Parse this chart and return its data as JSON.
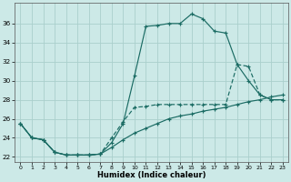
{
  "xlabel": "Humidex (Indice chaleur)",
  "xlim_min": -0.5,
  "xlim_max": 23.5,
  "ylim_min": 21.5,
  "ylim_max": 38.2,
  "yticks": [
    22,
    24,
    26,
    28,
    30,
    32,
    34,
    36
  ],
  "xticks": [
    0,
    1,
    2,
    3,
    4,
    5,
    6,
    7,
    8,
    9,
    10,
    11,
    12,
    13,
    14,
    15,
    16,
    17,
    18,
    19,
    20,
    21,
    22,
    23
  ],
  "bg_color": "#cce9e7",
  "grid_color": "#aacfcc",
  "line_color": "#1a6b63",
  "line1_x": [
    0,
    1,
    2,
    3,
    4,
    5,
    6,
    7,
    8,
    9,
    10,
    11,
    12,
    13,
    14,
    15,
    16,
    17,
    18,
    19,
    20,
    21,
    22,
    23
  ],
  "line1_y": [
    25.5,
    24.0,
    23.8,
    22.5,
    22.2,
    22.2,
    22.2,
    22.3,
    23.5,
    25.5,
    30.5,
    35.7,
    35.8,
    36.0,
    36.0,
    37.0,
    36.5,
    35.2,
    35.0,
    31.7,
    30.0,
    28.5,
    28.0,
    28.0
  ],
  "line2_x": [
    0,
    1,
    2,
    3,
    4,
    5,
    6,
    7,
    8,
    9,
    10,
    11,
    12,
    13,
    14,
    15,
    16,
    17,
    18,
    19,
    20,
    21,
    22,
    23
  ],
  "line2_y": [
    25.5,
    24.0,
    23.8,
    22.5,
    22.2,
    22.2,
    22.2,
    22.3,
    23.0,
    23.8,
    24.5,
    25.0,
    25.5,
    26.0,
    26.3,
    26.5,
    26.8,
    27.0,
    27.2,
    27.5,
    27.8,
    28.0,
    28.3,
    28.5
  ],
  "line3_x": [
    0,
    1,
    2,
    3,
    4,
    5,
    6,
    7,
    8,
    9,
    10,
    11,
    12,
    13,
    14,
    15,
    16,
    17,
    18,
    19,
    20,
    21,
    22,
    23
  ],
  "line3_y": [
    25.5,
    24.0,
    23.8,
    22.5,
    22.2,
    22.2,
    22.2,
    22.3,
    24.0,
    25.7,
    27.2,
    27.3,
    27.5,
    27.5,
    27.5,
    27.5,
    27.5,
    27.5,
    27.5,
    31.7,
    31.5,
    28.5,
    28.0,
    28.0
  ]
}
